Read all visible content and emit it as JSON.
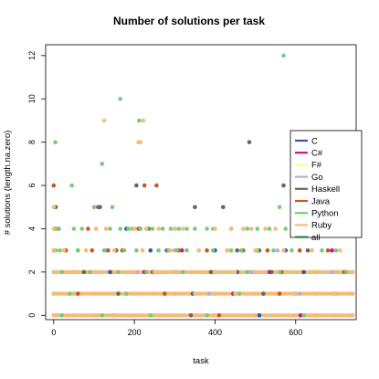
{
  "chart_data": {
    "type": "scatter",
    "title": "Number of solutions per task",
    "xlabel": "task",
    "ylabel": "# solutions (length.na.zero)",
    "xlim": [
      -20,
      750
    ],
    "ylim": [
      -0.2,
      12.5
    ],
    "xticks": [
      0,
      200,
      400,
      600
    ],
    "yticks": [
      0,
      2,
      4,
      6,
      8,
      10,
      12
    ],
    "xtick_labels": [
      "0",
      "200",
      "400",
      "600"
    ],
    "ytick_labels": [
      "0",
      "2",
      "4",
      "6",
      "8",
      "10",
      "12"
    ],
    "grid": false,
    "legend_position": "right",
    "series": [
      {
        "name": "C",
        "color": "#3355aa",
        "points": [
          [
            60,
            3
          ],
          [
            140,
            2
          ],
          [
            180,
            4
          ],
          [
            240,
            3
          ],
          [
            300,
            2
          ],
          [
            345,
            1
          ],
          [
            400,
            3
          ],
          [
            455,
            2
          ],
          [
            510,
            0
          ],
          [
            575,
            3
          ],
          [
            620,
            2
          ],
          [
            700,
            1
          ]
        ]
      },
      {
        "name": "C#",
        "color": "#cc1188",
        "points": [
          [
            210,
            4
          ],
          [
            225,
            2
          ],
          [
            318,
            3
          ],
          [
            445,
            1
          ],
          [
            535,
            2
          ],
          [
            612,
            0
          ],
          [
            690,
            3
          ]
        ]
      },
      {
        "name": "F#",
        "color": "#ffff88",
        "points": [
          [
            50,
            0
          ],
          [
            150,
            0
          ],
          [
            250,
            0
          ],
          [
            350,
            0
          ],
          [
            450,
            0
          ],
          [
            550,
            0
          ],
          [
            650,
            0
          ],
          [
            700,
            1
          ]
        ]
      },
      {
        "name": "Go",
        "color": "#bbaadd",
        "points": [
          [
            90,
            2
          ],
          [
            130,
            3
          ],
          [
            205,
            2
          ],
          [
            300,
            3
          ],
          [
            385,
            1
          ],
          [
            490,
            2
          ],
          [
            555,
            3
          ],
          [
            610,
            1
          ],
          [
            690,
            2
          ]
        ]
      },
      {
        "name": "Haskell",
        "color": "#666666",
        "points": [
          [
            5,
            5
          ],
          [
            110,
            5
          ],
          [
            115,
            5
          ],
          [
            205,
            6
          ],
          [
            235,
            4
          ],
          [
            300,
            4
          ],
          [
            350,
            5
          ],
          [
            420,
            5
          ],
          [
            485,
            8
          ],
          [
            510,
            3
          ],
          [
            570,
            6
          ],
          [
            30,
            3
          ],
          [
            75,
            2
          ],
          [
            155,
            3
          ],
          [
            280,
            3
          ],
          [
            390,
            2
          ],
          [
            455,
            3
          ],
          [
            540,
            2
          ],
          [
            630,
            3
          ],
          [
            700,
            2
          ],
          [
            160,
            1
          ],
          [
            340,
            0
          ],
          [
            520,
            1
          ]
        ]
      },
      {
        "name": "Java",
        "color": "#cc5522",
        "points": [
          [
            0,
            6
          ],
          [
            5,
            4
          ],
          [
            12,
            4
          ],
          [
            85,
            4
          ],
          [
            210,
            4
          ],
          [
            215,
            4
          ],
          [
            225,
            6
          ],
          [
            255,
            6
          ],
          [
            30,
            3
          ],
          [
            95,
            3
          ],
          [
            135,
            3
          ],
          [
            170,
            3
          ],
          [
            245,
            2
          ],
          [
            310,
            3
          ],
          [
            380,
            3
          ],
          [
            430,
            3
          ],
          [
            470,
            3
          ],
          [
            530,
            3
          ],
          [
            565,
            2
          ],
          [
            610,
            3
          ],
          [
            680,
            3
          ],
          [
            720,
            2
          ],
          [
            60,
            1
          ],
          [
            150,
            0
          ],
          [
            275,
            1
          ],
          [
            410,
            0
          ],
          [
            560,
            1
          ],
          [
            650,
            0
          ]
        ]
      },
      {
        "name": "Python",
        "color": "#77cc77",
        "points": [
          [
            4,
            8
          ],
          [
            120,
            7
          ],
          [
            165,
            10
          ],
          [
            212,
            9
          ],
          [
            570,
            12
          ],
          [
            0,
            3
          ],
          [
            5,
            3
          ],
          [
            10,
            4
          ],
          [
            45,
            6
          ],
          [
            50,
            4
          ],
          [
            70,
            4
          ],
          [
            100,
            5
          ],
          [
            140,
            4
          ],
          [
            145,
            5
          ],
          [
            165,
            4
          ],
          [
            185,
            4
          ],
          [
            195,
            4
          ],
          [
            215,
            4
          ],
          [
            230,
            4
          ],
          [
            245,
            4
          ],
          [
            270,
            4
          ],
          [
            290,
            4
          ],
          [
            310,
            4
          ],
          [
            330,
            4
          ],
          [
            350,
            4
          ],
          [
            380,
            4
          ],
          [
            395,
            4
          ],
          [
            440,
            4
          ],
          [
            480,
            4
          ],
          [
            505,
            4
          ],
          [
            535,
            4
          ],
          [
            560,
            5
          ],
          [
            575,
            4
          ],
          [
            600,
            4
          ],
          [
            630,
            4
          ],
          [
            15,
            3
          ],
          [
            60,
            3
          ],
          [
            125,
            3
          ],
          [
            175,
            3
          ],
          [
            205,
            3
          ],
          [
            260,
            3
          ],
          [
            285,
            3
          ],
          [
            305,
            3
          ],
          [
            330,
            3
          ],
          [
            360,
            3
          ],
          [
            395,
            3
          ],
          [
            440,
            3
          ],
          [
            465,
            3
          ],
          [
            505,
            3
          ],
          [
            545,
            3
          ],
          [
            590,
            3
          ],
          [
            640,
            3
          ],
          [
            665,
            3
          ],
          [
            700,
            3
          ],
          [
            20,
            2
          ],
          [
            90,
            2
          ],
          [
            160,
            2
          ],
          [
            230,
            2
          ],
          [
            320,
            2
          ],
          [
            400,
            2
          ],
          [
            480,
            2
          ],
          [
            560,
            2
          ],
          [
            650,
            2
          ],
          [
            725,
            2
          ],
          [
            40,
            1
          ],
          [
            180,
            1
          ],
          [
            300,
            1
          ],
          [
            460,
            1
          ],
          [
            600,
            1
          ],
          [
            20,
            0
          ],
          [
            120,
            0
          ],
          [
            240,
            0
          ],
          [
            380,
            0
          ],
          [
            500,
            0
          ],
          [
            620,
            0
          ]
        ]
      },
      {
        "name": "Ruby",
        "color": "#f5bb77",
        "points": [
          [
            0,
            5
          ],
          [
            125,
            9
          ],
          [
            210,
            8
          ],
          [
            215,
            8
          ],
          [
            222,
            9
          ],
          [
            230,
            4
          ],
          [
            470,
            4
          ],
          [
            490,
            4
          ],
          [
            590,
            4
          ],
          [
            630,
            4
          ],
          [
            690,
            4
          ],
          [
            0,
            4
          ],
          [
            105,
            4
          ],
          [
            130,
            4
          ],
          [
            200,
            4
          ],
          [
            260,
            4
          ],
          [
            300,
            4
          ],
          [
            320,
            4
          ],
          [
            400,
            4
          ],
          [
            440,
            4
          ],
          [
            525,
            4
          ],
          [
            550,
            4
          ],
          [
            0,
            3
          ],
          [
            25,
            3
          ],
          [
            80,
            3
          ],
          [
            150,
            3
          ],
          [
            220,
            3
          ],
          [
            290,
            3
          ],
          [
            360,
            3
          ],
          [
            430,
            3
          ],
          [
            500,
            3
          ],
          [
            570,
            3
          ],
          [
            640,
            3
          ],
          [
            710,
            3
          ],
          [
            0,
            2
          ],
          [
            50,
            2
          ],
          [
            100,
            2
          ],
          [
            150,
            2
          ],
          [
            200,
            2
          ],
          [
            250,
            2
          ],
          [
            300,
            2
          ],
          [
            350,
            2
          ],
          [
            400,
            2
          ],
          [
            450,
            2
          ],
          [
            500,
            2
          ],
          [
            550,
            2
          ],
          [
            600,
            2
          ],
          [
            650,
            2
          ],
          [
            700,
            2
          ],
          [
            740,
            2
          ],
          [
            0,
            1
          ],
          [
            50,
            1
          ],
          [
            100,
            1
          ],
          [
            150,
            1
          ],
          [
            200,
            1
          ],
          [
            250,
            1
          ],
          [
            300,
            1
          ],
          [
            350,
            1
          ],
          [
            400,
            1
          ],
          [
            450,
            1
          ],
          [
            500,
            1
          ],
          [
            550,
            1
          ],
          [
            600,
            1
          ],
          [
            650,
            1
          ],
          [
            700,
            1
          ],
          [
            740,
            1
          ],
          [
            0,
            0
          ],
          [
            50,
            0
          ],
          [
            100,
            0
          ],
          [
            150,
            0
          ],
          [
            200,
            0
          ],
          [
            250,
            0
          ],
          [
            300,
            0
          ],
          [
            350,
            0
          ],
          [
            400,
            0
          ],
          [
            450,
            0
          ],
          [
            500,
            0
          ],
          [
            550,
            0
          ],
          [
            600,
            0
          ],
          [
            650,
            0
          ],
          [
            700,
            0
          ],
          [
            740,
            0
          ]
        ]
      },
      {
        "name": "all",
        "color": "#228833",
        "points": []
      }
    ],
    "dense_bands": [
      {
        "y": 0,
        "x_from": 0,
        "x_to": 745,
        "series": "Ruby"
      },
      {
        "y": 1,
        "x_from": 0,
        "x_to": 745,
        "series": "Ruby"
      },
      {
        "y": 2,
        "x_from": 0,
        "x_to": 745,
        "series": "Ruby"
      }
    ]
  }
}
